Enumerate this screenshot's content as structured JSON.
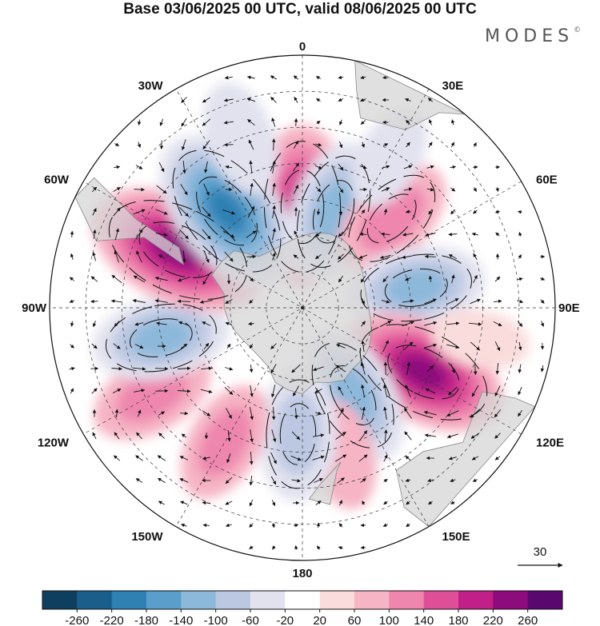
{
  "title": "Base 03/06/2025 00 UTC, valid 08/06/2025 00 UTC",
  "brand": {
    "name": "MODES",
    "mark": "©"
  },
  "longitude_labels": [
    {
      "text": "0",
      "lon": 0
    },
    {
      "text": "30E",
      "lon": 30
    },
    {
      "text": "60E",
      "lon": 60
    },
    {
      "text": "90E",
      "lon": 90
    },
    {
      "text": "120E",
      "lon": 120
    },
    {
      "text": "150E",
      "lon": 150
    },
    {
      "text": "180",
      "lon": 180
    },
    {
      "text": "150W",
      "lon": -150
    },
    {
      "text": "120W",
      "lon": -120
    },
    {
      "text": "90W",
      "lon": -90
    },
    {
      "text": "60W",
      "lon": -60
    },
    {
      "text": "30W",
      "lon": -30
    }
  ],
  "reference_vector": {
    "value": "30"
  },
  "colorbar": {
    "ticks": [
      "-260",
      "-220",
      "-180",
      "-140",
      "-100",
      "-60",
      "-20",
      "20",
      "60",
      "100",
      "140",
      "180",
      "220",
      "260"
    ],
    "colors": [
      "#0f3f5e",
      "#1a5f8c",
      "#2f80b3",
      "#5a9fcb",
      "#8cb8da",
      "#bcc8e2",
      "#e2e2ef",
      "#ffffff",
      "#fadcdc",
      "#f6b4c4",
      "#ee86ae",
      "#df4f98",
      "#c02087",
      "#8e0b7e",
      "#5a0770"
    ]
  },
  "anomaly_centers": [
    {
      "lon": 0,
      "lat": -62,
      "value": 200
    },
    {
      "lon": 18,
      "lat": -62,
      "value": -150
    },
    {
      "lon": 45,
      "lat": -55,
      "value": 120
    },
    {
      "lon": 80,
      "lat": -58,
      "value": -140
    },
    {
      "lon": 118,
      "lat": -52,
      "value": 220
    },
    {
      "lon": 150,
      "lat": -62,
      "value": -150
    },
    {
      "lon": 165,
      "lat": -48,
      "value": 70
    },
    {
      "lon": -178,
      "lat": -55,
      "value": -130
    },
    {
      "lon": -150,
      "lat": -47,
      "value": 100
    },
    {
      "lon": -120,
      "lat": -42,
      "value": 110
    },
    {
      "lon": -102,
      "lat": -50,
      "value": -140
    },
    {
      "lon": -65,
      "lat": -52,
      "value": 250
    },
    {
      "lon": -38,
      "lat": -56,
      "value": -230
    },
    {
      "lon": -20,
      "lat": -40,
      "value": -80
    },
    {
      "lon": 30,
      "lat": -42,
      "value": -60
    },
    {
      "lon": 100,
      "lat": -40,
      "value": 40
    }
  ]
}
